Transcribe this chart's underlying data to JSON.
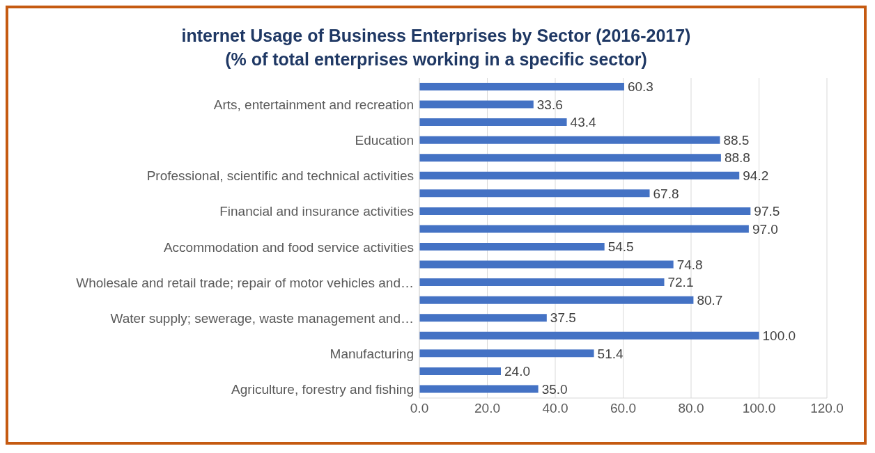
{
  "chart_data": {
    "type": "bar",
    "orientation": "horizontal",
    "title": "internet Usage of Business Enterprises by Sector (2016-2017)",
    "subtitle": "(% of total enterprises working in a specific sector)",
    "categories": [
      null,
      "Arts, entertainment and recreation",
      null,
      "Education",
      null,
      "Professional, scientific and technical activities",
      null,
      "Financial and insurance activities",
      null,
      "Accommodation and food service activities",
      null,
      "Wholesale and retail trade; repair of motor vehicles and…",
      null,
      "Water supply; sewerage, waste management and…",
      null,
      "Manufacturing",
      null,
      "Agriculture, forestry and fishing"
    ],
    "values": [
      60.3,
      33.6,
      43.4,
      88.5,
      88.8,
      94.2,
      67.8,
      97.5,
      97.0,
      54.5,
      74.8,
      72.1,
      80.7,
      37.5,
      100.0,
      51.4,
      24.0,
      35.0
    ],
    "value_labels": [
      "60.3",
      "33.6",
      "43.4",
      "88.5",
      "88.8",
      "94.2",
      "67.8",
      "97.5",
      "97.0",
      "54.5",
      "74.8",
      "72.1",
      "80.7",
      "37.5",
      "100.0",
      "51.4",
      "24.0",
      "35.0"
    ],
    "color": "#4472c4",
    "xlim": [
      0,
      120
    ],
    "xticks": [
      {
        "value": 0,
        "label": "0.0"
      },
      {
        "value": 20,
        "label": "20.0"
      },
      {
        "value": 40,
        "label": "40.0"
      },
      {
        "value": 60,
        "label": "60.0"
      },
      {
        "value": 80,
        "label": "80.0"
      },
      {
        "value": 100,
        "label": "100.0"
      },
      {
        "value": 120,
        "label": "120.0"
      }
    ],
    "grid": "x"
  }
}
